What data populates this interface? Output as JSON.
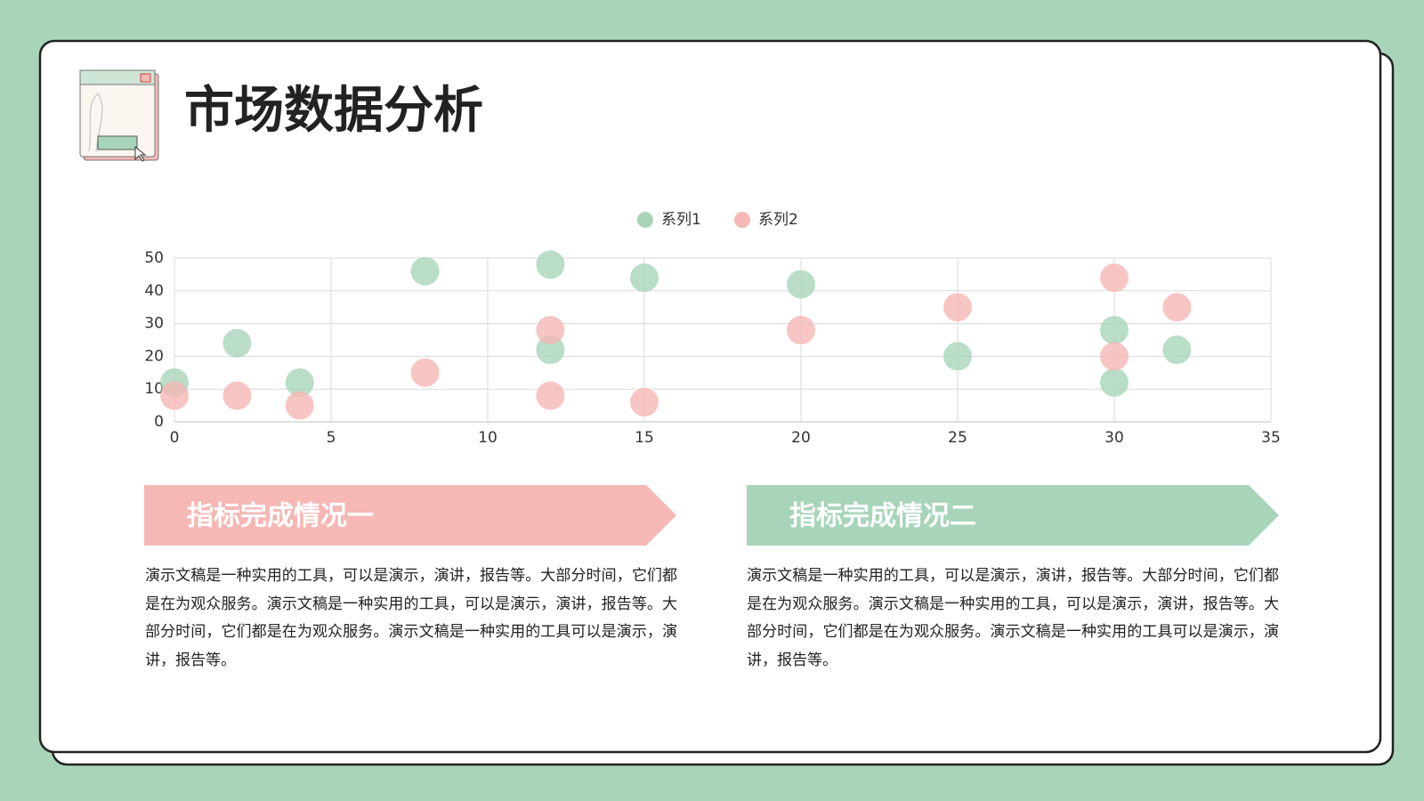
{
  "title": "市场数据分析",
  "chart_data": {
    "type": "scatter",
    "series": [
      {
        "name": "系列1",
        "color": "#a8d5b9",
        "x": [
          0,
          2,
          4,
          8,
          12,
          12,
          15,
          20,
          25,
          30,
          30,
          32
        ],
        "values": [
          12,
          24,
          12,
          46,
          48,
          22,
          44,
          42,
          20,
          28,
          12,
          22
        ]
      },
      {
        "name": "系列2",
        "color": "#f5b8b5",
        "x": [
          0,
          2,
          4,
          8,
          12,
          12,
          15,
          20,
          25,
          30,
          30,
          32
        ],
        "values": [
          8,
          8,
          5,
          15,
          28,
          8,
          6,
          28,
          35,
          44,
          20,
          35
        ]
      }
    ],
    "xlim": [
      0,
      35
    ],
    "xticks": [
      0,
      5,
      10,
      15,
      20,
      25,
      30,
      35
    ],
    "ylim": [
      0,
      50
    ],
    "yticks": [
      0,
      10,
      20,
      30,
      40,
      50
    ],
    "grid": true,
    "legend": "top"
  },
  "sections": [
    {
      "heading": "指标完成情况一",
      "color": "#f5b8b5",
      "body": "演示文稿是一种实用的工具，可以是演示，演讲，报告等。大部分时间，它们都是在为观众服务。演示文稿是一种实用的工具，可以是演示，演讲，报告等。大部分时间，它们都是在为观众服务。演示文稿是一种实用的工具可以是演示，演讲，报告等。"
    },
    {
      "heading": "指标完成情况二",
      "color": "#a8d5b9",
      "body": "演示文稿是一种实用的工具，可以是演示，演讲，报告等。大部分时间，它们都是在为观众服务。演示文稿是一种实用的工具，可以是演示，演讲，报告等。大部分时间，它们都是在为观众服务。演示文稿是一种实用的工具可以是演示，演讲，报告等。"
    }
  ]
}
